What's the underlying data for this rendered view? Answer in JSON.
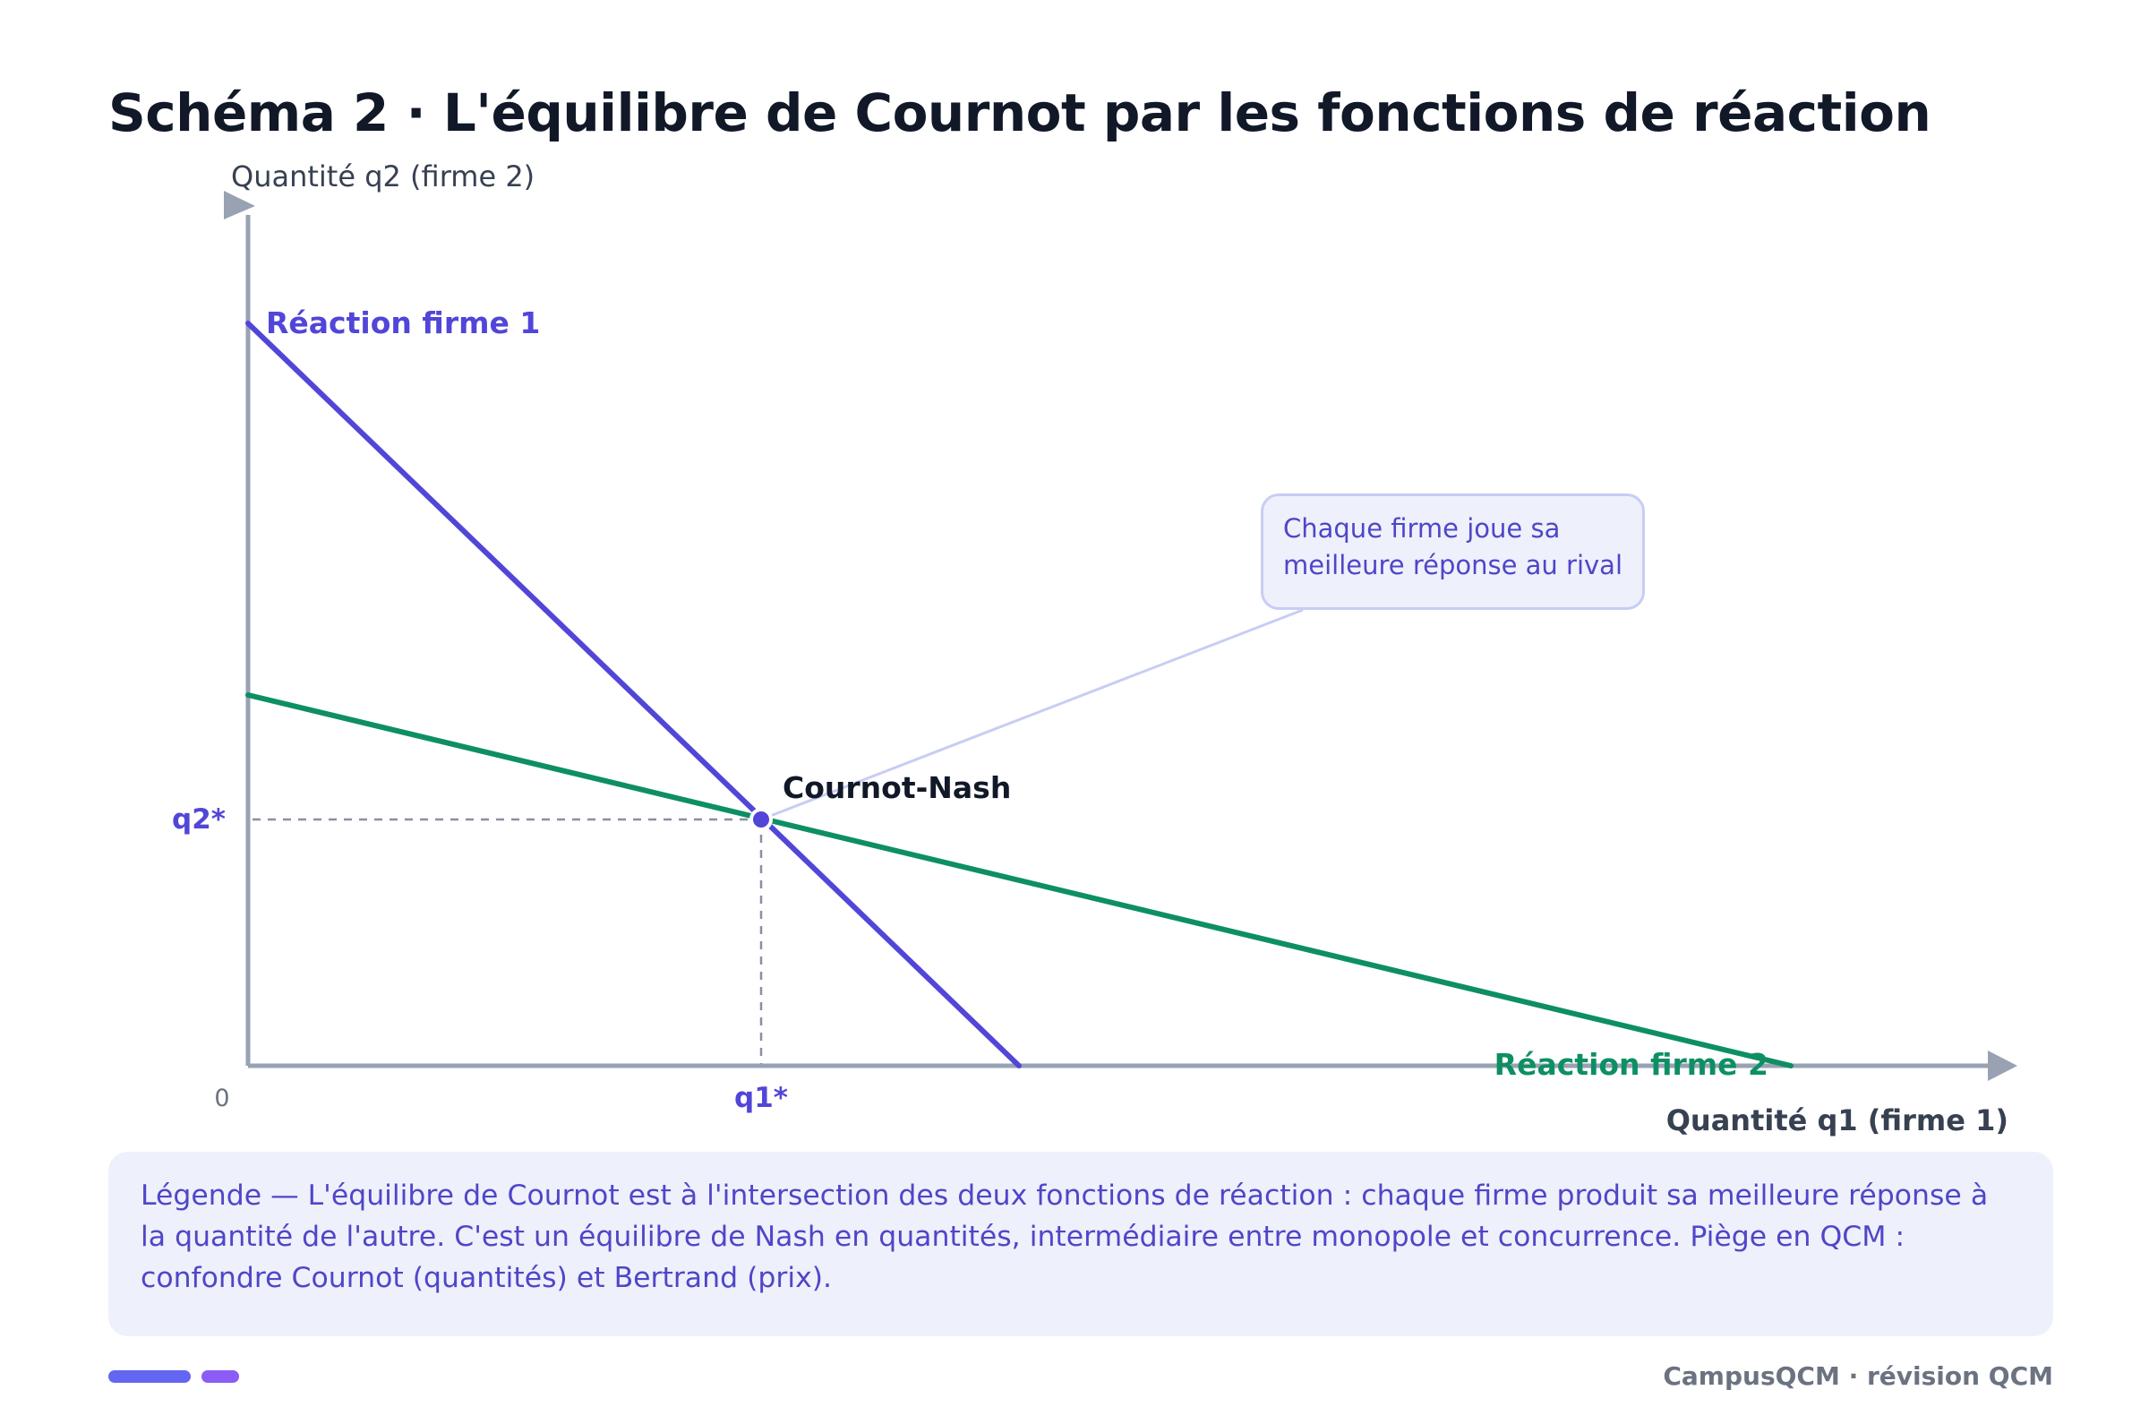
{
  "title": "Schéma 2 · L'équilibre de Cournot par les fonctions de réaction",
  "axes": {
    "y_label": "Quantité q2 (firme 2)",
    "x_label": "Quantité q1 (firme 1)",
    "origin": "0"
  },
  "curves": {
    "reaction1": {
      "label": "Réaction firme 1",
      "color": "#5146d8"
    },
    "reaction2": {
      "label": "Réaction firme 2",
      "color": "#0e8f63"
    }
  },
  "equilibrium": {
    "label": "Cournot-Nash",
    "q1_label": "q1*",
    "q2_label": "q2*",
    "color": "#5146d8"
  },
  "callout": {
    "line1": "Chaque firme joue sa",
    "line2": "meilleure réponse au rival"
  },
  "legend": {
    "text": "Légende — L'équilibre de Cournot est à l'intersection des deux fonctions de réaction : chaque firme produit sa meilleure réponse à la quantité de l'autre. C'est un équilibre de Nash en quantités, intermédiaire entre monopole et concurrence. Piège en QCM : confondre Cournot (quantités) et Bertrand (prix)."
  },
  "footer": {
    "credit": "CampusQCM · révision QCM",
    "bar_colors": [
      "#6366f1",
      "#8b5cf6"
    ]
  }
}
